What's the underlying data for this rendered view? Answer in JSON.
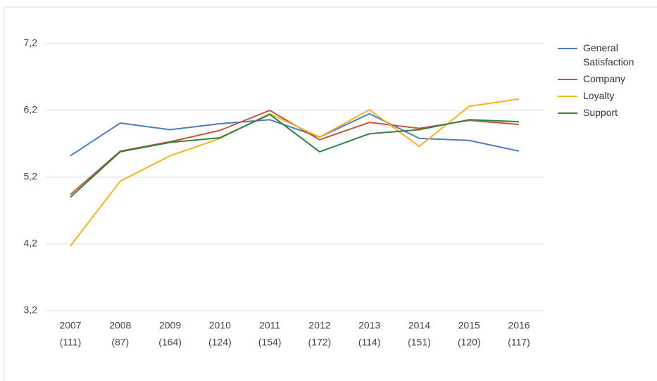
{
  "chart_data": {
    "type": "line",
    "categories": [
      [
        "2007",
        "(111)"
      ],
      [
        "2008",
        "(87)"
      ],
      [
        "2009",
        "(164)"
      ],
      [
        "2010",
        "(124)"
      ],
      [
        "2011",
        "(154)"
      ],
      [
        "2012",
        "(172)"
      ],
      [
        "2013",
        "(114)"
      ],
      [
        "2014",
        "(151)"
      ],
      [
        "2015",
        "(120)"
      ],
      [
        "2016",
        "(117)"
      ]
    ],
    "series": [
      {
        "name": "General Satisfaction",
        "color": "#4a7cc4",
        "values": [
          5.52,
          6.01,
          5.91,
          6.0,
          6.06,
          5.8,
          6.15,
          5.78,
          5.75,
          5.59
        ]
      },
      {
        "name": "Company",
        "color": "#c8553a",
        "values": [
          4.94,
          5.59,
          5.73,
          5.9,
          6.2,
          5.76,
          6.02,
          5.93,
          6.05,
          5.99
        ]
      },
      {
        "name": "Loyalty",
        "color": "#f4b41a",
        "values": [
          4.17,
          5.14,
          5.52,
          5.78,
          6.15,
          5.8,
          6.21,
          5.66,
          6.26,
          6.37
        ]
      },
      {
        "name": "Support",
        "color": "#2e8540",
        "values": [
          4.9,
          5.58,
          5.72,
          5.79,
          6.14,
          5.58,
          5.85,
          5.91,
          6.06,
          6.03
        ]
      }
    ],
    "ylim": [
      3.2,
      7.2
    ],
    "yticks": [
      {
        "value": 3.2,
        "label": "3,2"
      },
      {
        "value": 4.2,
        "label": "4,2"
      },
      {
        "value": 5.2,
        "label": "5,2"
      },
      {
        "value": 6.2,
        "label": "6,2"
      },
      {
        "value": 7.2,
        "label": "7,2"
      }
    ],
    "grid": true,
    "legend": "right"
  }
}
